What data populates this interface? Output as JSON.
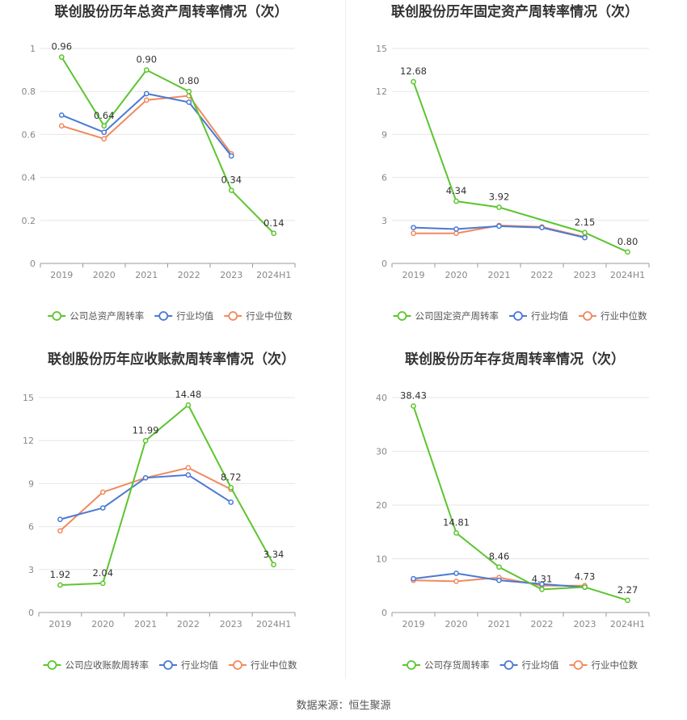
{
  "colors": {
    "company": "#5cc52f",
    "industry_mean": "#4a79d6",
    "industry_median": "#f08a5d"
  },
  "legend": {
    "industry_mean": "行业均值",
    "industry_median": "行业中位数"
  },
  "footer": {
    "source": "数据来源：恒生聚源"
  },
  "chart_data": [
    {
      "type": "line",
      "title": "联创股份历年总资产周转率情况（次）",
      "categories": [
        "2019",
        "2020",
        "2021",
        "2022",
        "2023",
        "2024H1"
      ],
      "ylim": [
        0,
        1
      ],
      "yticks": [
        0,
        0.2,
        0.4,
        0.6,
        0.8,
        1
      ],
      "series": [
        {
          "name": "公司总资产周转率",
          "values": [
            0.96,
            0.64,
            0.9,
            0.8,
            0.34,
            0.14
          ],
          "labels": [
            "0.96",
            "0.64",
            "0.90",
            "0.80",
            "0.34",
            "0.14"
          ]
        },
        {
          "name": "行业均值",
          "values": [
            0.69,
            0.61,
            0.79,
            0.75,
            0.5,
            null
          ]
        },
        {
          "name": "行业中位数",
          "values": [
            0.64,
            0.58,
            0.76,
            0.78,
            0.51,
            null
          ]
        }
      ]
    },
    {
      "type": "line",
      "title": "联创股份历年固定资产周转率情况（次）",
      "categories": [
        "2019",
        "2020",
        "2021",
        "2022",
        "2023",
        "2024H1"
      ],
      "ylim": [
        0,
        15
      ],
      "yticks": [
        0,
        3,
        6,
        9,
        12,
        15
      ],
      "series": [
        {
          "name": "公司固定资产周转率",
          "values": [
            12.68,
            4.34,
            3.92,
            null,
            2.15,
            0.8
          ],
          "labels": [
            "12.68",
            "4.34",
            "3.92",
            "",
            "2.15",
            "0.80"
          ]
        },
        {
          "name": "行业均值",
          "values": [
            2.5,
            2.4,
            2.6,
            2.5,
            1.8,
            null
          ]
        },
        {
          "name": "行业中位数",
          "values": [
            2.1,
            2.1,
            2.65,
            2.55,
            1.85,
            null
          ]
        }
      ]
    },
    {
      "type": "line",
      "title": "联创股份历年应收账款周转率情况（次）",
      "categories": [
        "2019",
        "2020",
        "2021",
        "2022",
        "2023",
        "2024H1"
      ],
      "ylim": [
        0,
        15
      ],
      "yticks": [
        0,
        3,
        6,
        9,
        12,
        15
      ],
      "series": [
        {
          "name": "公司应收账款周转率",
          "values": [
            1.92,
            2.04,
            11.99,
            14.48,
            8.72,
            3.34
          ],
          "labels": [
            "1.92",
            "2.04",
            "11.99",
            "14.48",
            "8.72",
            "3.34"
          ]
        },
        {
          "name": "行业均值",
          "values": [
            6.5,
            7.3,
            9.4,
            9.6,
            7.7,
            null
          ]
        },
        {
          "name": "行业中位数",
          "values": [
            5.7,
            8.4,
            9.4,
            10.1,
            8.6,
            null
          ]
        }
      ]
    },
    {
      "type": "line",
      "title": "联创股份历年存货周转率情况（次）",
      "categories": [
        "2019",
        "2020",
        "2021",
        "2022",
        "2023",
        "2024H1"
      ],
      "ylim": [
        0,
        40
      ],
      "yticks": [
        0,
        10,
        20,
        30,
        40
      ],
      "series": [
        {
          "name": "公司存货周转率",
          "values": [
            38.43,
            14.81,
            8.46,
            4.31,
            4.73,
            2.27
          ],
          "labels": [
            "38.43",
            "14.81",
            "8.46",
            "4.31",
            "4.73",
            "2.27"
          ]
        },
        {
          "name": "行业均值",
          "values": [
            6.3,
            7.3,
            6.0,
            5.3,
            4.7,
            null
          ]
        },
        {
          "name": "行业中位数",
          "values": [
            6.0,
            5.8,
            6.5,
            5.0,
            5.0,
            null
          ]
        }
      ]
    }
  ]
}
